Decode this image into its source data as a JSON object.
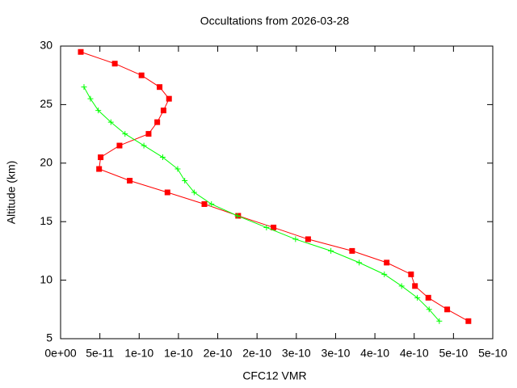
{
  "chart_data": {
    "type": "line",
    "title": "Occultations from 2026-03-28",
    "x_label": "CFC12 VMR",
    "y_label": "Altitude (km)",
    "xlim": [
      0,
      5.5e-10
    ],
    "ylim": [
      5,
      30
    ],
    "xticks": [
      {
        "value": 0,
        "label": "0e+00"
      },
      {
        "value": 5e-11,
        "label": "5e-11"
      },
      {
        "value": 1e-10,
        "label": "1e-10"
      },
      {
        "value": 1.5e-10,
        "label": "1e-10"
      },
      {
        "value": 2e-10,
        "label": "2e-10"
      },
      {
        "value": 2.5e-10,
        "label": "2e-10"
      },
      {
        "value": 3e-10,
        "label": "3e-10"
      },
      {
        "value": 3.5e-10,
        "label": "3e-10"
      },
      {
        "value": 4e-10,
        "label": "4e-10"
      },
      {
        "value": 4.5e-10,
        "label": "4e-10"
      },
      {
        "value": 5e-10,
        "label": "5e-10"
      },
      {
        "value": 5.5e-10,
        "label": "5e-10"
      }
    ],
    "yticks": [
      5,
      10,
      15,
      20,
      25,
      30
    ],
    "series": [
      {
        "color": "#ff0000",
        "marker": "square",
        "x": [
          2.57e-11,
          6.9e-11,
          1.03e-10,
          1.26e-10,
          1.38e-10,
          1.31e-10,
          1.23e-10,
          1.12e-10,
          7.5e-11,
          5.1e-11,
          4.9e-11,
          8.8e-11,
          1.36e-10,
          1.83e-10,
          2.26e-10,
          2.71e-10,
          3.15e-10,
          3.71e-10,
          4.15e-10,
          4.46e-10,
          4.51e-10,
          4.68e-10,
          4.92e-10,
          5.19e-10
        ],
        "values": [
          29.5,
          28.5,
          27.5,
          26.5,
          25.5,
          24.5,
          23.5,
          22.5,
          21.5,
          20.5,
          19.5,
          18.5,
          17.5,
          16.5,
          15.5,
          14.5,
          13.5,
          12.5,
          11.5,
          10.5,
          9.5,
          8.5,
          7.5,
          6.5
        ]
      },
      {
        "color": "#00ff00",
        "marker": "plus",
        "x": [
          2.98e-11,
          3.8e-11,
          4.8e-11,
          6.4e-11,
          8.2e-11,
          1.06e-10,
          1.3e-10,
          1.49e-10,
          1.58e-10,
          1.7e-10,
          1.92e-10,
          2.25e-10,
          2.62e-10,
          2.99e-10,
          3.44e-10,
          3.8e-10,
          4.12e-10,
          4.34e-10,
          4.54e-10,
          4.69e-10,
          4.82e-10
        ],
        "values": [
          26.5,
          25.5,
          24.5,
          23.5,
          22.5,
          21.5,
          20.5,
          19.5,
          18.5,
          17.5,
          16.5,
          15.5,
          14.5,
          13.5,
          12.5,
          11.5,
          10.5,
          9.5,
          8.5,
          7.5,
          6.5
        ]
      }
    ]
  }
}
